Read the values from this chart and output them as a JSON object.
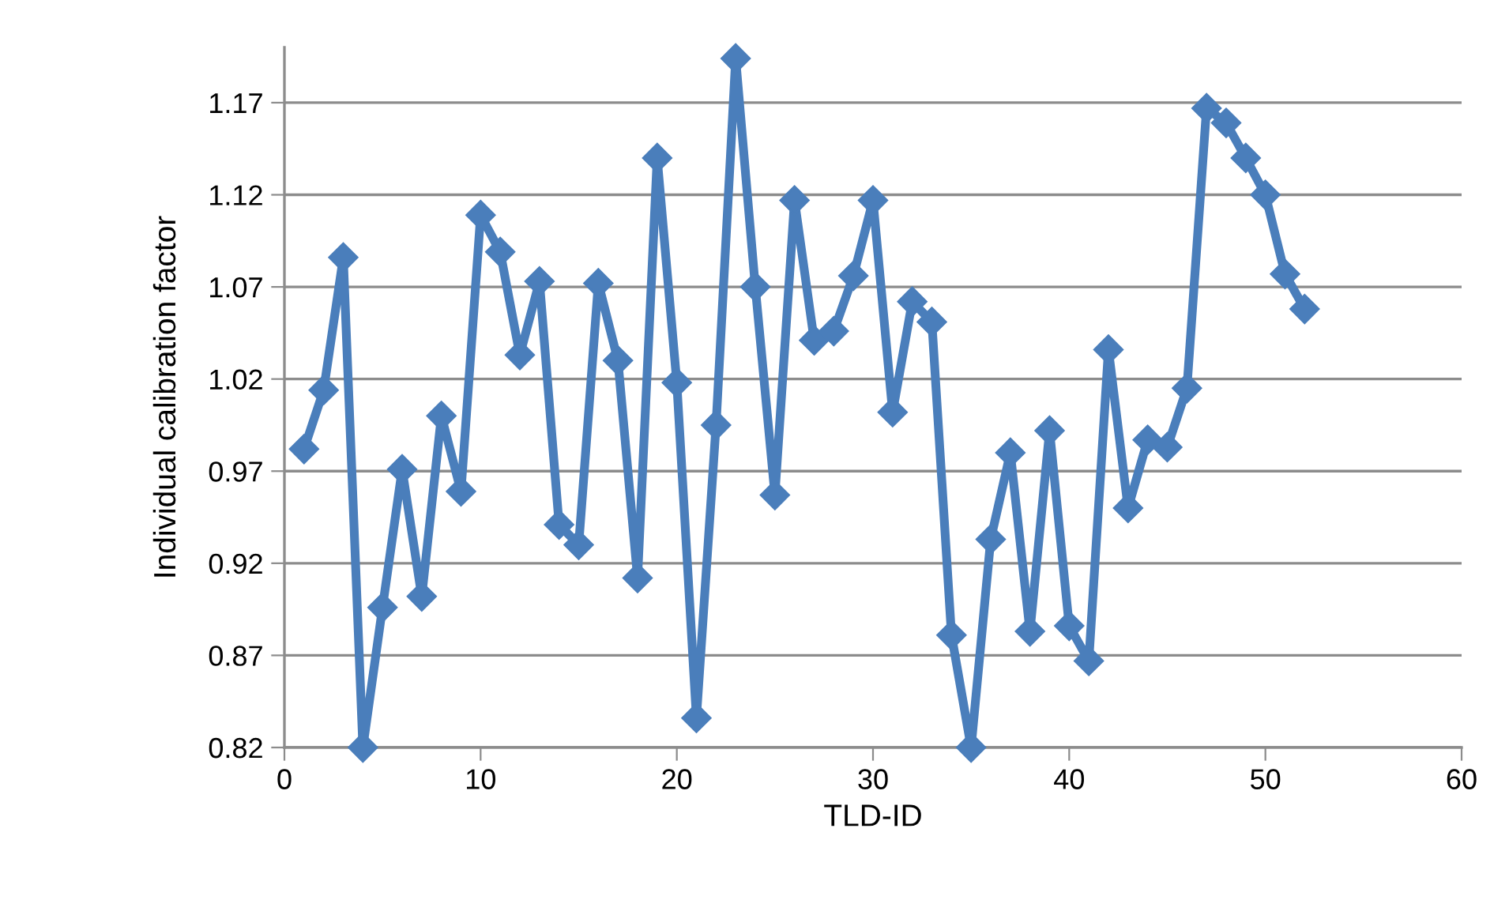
{
  "chart_data": {
    "type": "line",
    "xlabel": "TLD-ID",
    "ylabel": "Individual calibration factor",
    "x": [
      1,
      2,
      3,
      4,
      5,
      6,
      7,
      8,
      9,
      10,
      11,
      12,
      13,
      14,
      15,
      16,
      17,
      18,
      19,
      20,
      21,
      22,
      23,
      24,
      25,
      26,
      27,
      28,
      29,
      30,
      31,
      32,
      33,
      34,
      35,
      36,
      37,
      38,
      39,
      40,
      41,
      42,
      43,
      44,
      45,
      46,
      47,
      48,
      49,
      50,
      51,
      52
    ],
    "series": [
      {
        "color": "#4a7ebb",
        "values": [
          0.982,
          1.014,
          1.086,
          0.82,
          0.896,
          0.971,
          0.902,
          1.0,
          0.959,
          1.109,
          1.089,
          1.033,
          1.073,
          0.941,
          0.93,
          1.072,
          1.03,
          0.912,
          1.14,
          1.018,
          0.836,
          0.995,
          1.194,
          1.07,
          0.957,
          1.117,
          1.041,
          1.046,
          1.076,
          1.117,
          1.002,
          1.062,
          1.051,
          0.881,
          0.82,
          0.933,
          0.98,
          0.883,
          0.992,
          0.886,
          0.867,
          1.036,
          0.95,
          0.987,
          0.983,
          1.015,
          1.167,
          1.159,
          1.14,
          1.12,
          1.077,
          1.058
        ]
      }
    ],
    "xlim": [
      0,
      60
    ],
    "xticks": [
      0,
      10,
      20,
      30,
      40,
      50,
      60
    ],
    "ylim": [
      0.82,
      1.2
    ],
    "yticks": [
      0.82,
      0.87,
      0.92,
      0.97,
      1.02,
      1.07,
      1.12,
      1.17
    ],
    "grid": "y",
    "marker": "diamond",
    "line_style": "solid"
  }
}
